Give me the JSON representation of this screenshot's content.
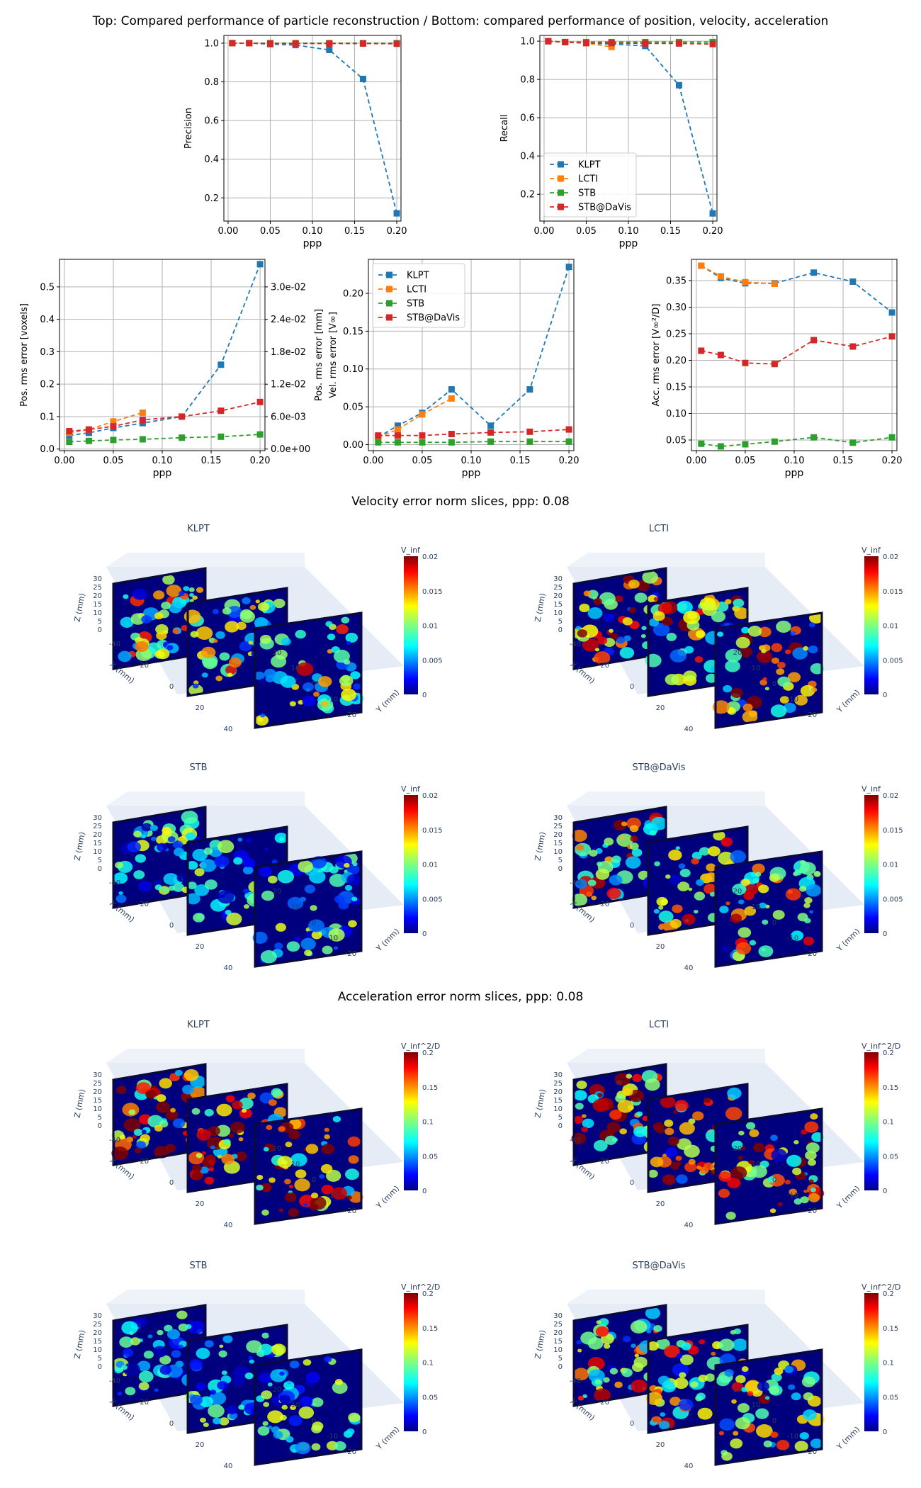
{
  "figure": {
    "title": "Top: Compared performance of particle reconstruction / Bottom: compared performance of position, velocity, acceleration",
    "velocity_section_title": "Velocity error norm slices, ppp: 0.08",
    "acceleration_section_title": "Acceleration error norm slices, ppp: 0.08"
  },
  "colors": {
    "KLPT": "#1f77b4",
    "LCTI": "#ff7f0e",
    "STB": "#2ca02c",
    "STB@DaVis": "#d62728",
    "grid": "#b0b0b0",
    "pane_bg": "#e5ecf6",
    "plotly_text": "#2a3f5f"
  },
  "chart_data": [
    {
      "id": "precision",
      "type": "line",
      "xlabel": "ppp",
      "ylabel": "Precision",
      "xlim": [
        -0.005,
        0.205
      ],
      "ylim": [
        0.08,
        1.04
      ],
      "xticks": [
        0.0,
        0.05,
        0.1,
        0.15,
        0.2
      ],
      "xticklabels": [
        "0.00",
        "0.05",
        "0.10",
        "0.15",
        "0.20"
      ],
      "yticks": [
        0.2,
        0.4,
        0.6,
        0.8,
        1.0
      ],
      "yticklabels": [
        "0.2",
        "0.4",
        "0.6",
        "0.8",
        "1.0"
      ],
      "grid": true,
      "x": [
        0.005,
        0.025,
        0.05,
        0.08,
        0.12,
        0.16,
        0.2
      ],
      "series": [
        {
          "name": "KLPT",
          "values": [
            1.0,
            1.0,
            0.995,
            0.99,
            0.965,
            0.815,
            0.12
          ]
        },
        {
          "name": "LCTI",
          "values": [
            1.0,
            1.0,
            1.0,
            1.0,
            null,
            null,
            null
          ]
        },
        {
          "name": "STB",
          "values": [
            1.0,
            1.0,
            1.0,
            1.0,
            1.0,
            1.0,
            1.0
          ]
        },
        {
          "name": "STB@DaVis",
          "values": [
            1.0,
            1.0,
            0.998,
            0.998,
            0.998,
            0.998,
            0.997
          ]
        }
      ]
    },
    {
      "id": "recall",
      "type": "line",
      "xlabel": "ppp",
      "ylabel": "Recall",
      "xlim": [
        -0.005,
        0.205
      ],
      "ylim": [
        0.06,
        1.03
      ],
      "xticks": [
        0.0,
        0.05,
        0.1,
        0.15,
        0.2
      ],
      "xticklabels": [
        "0.00",
        "0.05",
        "0.10",
        "0.15",
        "0.20"
      ],
      "yticks": [
        0.2,
        0.4,
        0.6,
        0.8,
        1.0
      ],
      "yticklabels": [
        "0.2",
        "0.4",
        "0.6",
        "0.8",
        "1.0"
      ],
      "grid": true,
      "legend": "lower-left",
      "x": [
        0.005,
        0.025,
        0.05,
        0.08,
        0.12,
        0.16,
        0.2
      ],
      "series": [
        {
          "name": "KLPT",
          "values": [
            1.0,
            0.995,
            0.99,
            0.985,
            0.975,
            0.77,
            0.1
          ]
        },
        {
          "name": "LCTI",
          "values": [
            1.0,
            0.995,
            0.99,
            0.97,
            null,
            null,
            null
          ]
        },
        {
          "name": "STB",
          "values": [
            1.0,
            0.995,
            0.995,
            0.995,
            0.995,
            0.995,
            0.995
          ]
        },
        {
          "name": "STB@DaVis",
          "values": [
            1.0,
            0.995,
            0.99,
            0.99,
            0.988,
            0.988,
            0.985
          ]
        }
      ]
    },
    {
      "id": "position",
      "type": "line",
      "xlabel": "ppp",
      "ylabel": "Pos. rms error [voxels]",
      "ylabel_right": "Pos. rms error [mm]",
      "xlim": [
        -0.005,
        0.205
      ],
      "ylim": [
        -0.005,
        0.585
      ],
      "xticks": [
        0.0,
        0.05,
        0.1,
        0.15,
        0.2
      ],
      "xticklabels": [
        "0.00",
        "0.05",
        "0.10",
        "0.15",
        "0.20"
      ],
      "yticks": [
        0.0,
        0.1,
        0.2,
        0.3,
        0.4,
        0.5
      ],
      "yticklabels": [
        "0.0",
        "0.1",
        "0.2",
        "0.3",
        "0.4",
        "0.5"
      ],
      "yticklabels_right": [
        "0.0e+00",
        "6.0e-03",
        "1.2e-02",
        "1.8e-02",
        "2.4e-02",
        "3.0e-02"
      ],
      "grid": true,
      "x": [
        0.005,
        0.025,
        0.05,
        0.08,
        0.12,
        0.16,
        0.2
      ],
      "series": [
        {
          "name": "KLPT",
          "values": [
            0.042,
            0.05,
            0.065,
            0.08,
            0.1,
            0.26,
            0.57
          ]
        },
        {
          "name": "LCTI",
          "values": [
            0.05,
            0.06,
            0.085,
            0.112,
            null,
            null,
            null
          ]
        },
        {
          "name": "STB",
          "values": [
            0.022,
            0.025,
            0.028,
            0.03,
            0.035,
            0.038,
            0.045
          ]
        },
        {
          "name": "STB@DaVis",
          "values": [
            0.055,
            0.06,
            0.07,
            0.09,
            0.1,
            0.118,
            0.145
          ]
        }
      ]
    },
    {
      "id": "velocity",
      "type": "line",
      "xlabel": "ppp",
      "ylabel": "Vel. rms error [V∞]",
      "xlim": [
        -0.005,
        0.205
      ],
      "ylim": [
        -0.008,
        0.245
      ],
      "xticks": [
        0.0,
        0.05,
        0.1,
        0.15,
        0.2
      ],
      "xticklabels": [
        "0.00",
        "0.05",
        "0.10",
        "0.15",
        "0.20"
      ],
      "yticks": [
        0.0,
        0.05,
        0.1,
        0.15,
        0.2
      ],
      "yticklabels": [
        "0.00",
        "0.05",
        "0.10",
        "0.15",
        "0.20"
      ],
      "grid": true,
      "legend": "top-left",
      "x": [
        0.005,
        0.025,
        0.05,
        0.08,
        0.12,
        0.16,
        0.2
      ],
      "series": [
        {
          "name": "KLPT",
          "values": [
            0.01,
            0.025,
            0.042,
            0.073,
            0.025,
            0.073,
            0.235
          ]
        },
        {
          "name": "LCTI",
          "values": [
            0.01,
            0.02,
            0.04,
            0.061,
            null,
            null,
            null
          ]
        },
        {
          "name": "STB",
          "values": [
            0.003,
            0.003,
            0.003,
            0.003,
            0.004,
            0.004,
            0.004
          ]
        },
        {
          "name": "STB@DaVis",
          "values": [
            0.012,
            0.012,
            0.012,
            0.014,
            0.016,
            0.017,
            0.02
          ]
        }
      ]
    },
    {
      "id": "acceleration",
      "type": "line",
      "xlabel": "ppp",
      "ylabel": "Acc. rms error [V∞²/D]",
      "xlim": [
        -0.005,
        0.205
      ],
      "ylim": [
        0.03,
        0.39
      ],
      "xticks": [
        0.0,
        0.05,
        0.1,
        0.15,
        0.2
      ],
      "xticklabels": [
        "0.00",
        "0.05",
        "0.10",
        "0.15",
        "0.20"
      ],
      "yticks": [
        0.05,
        0.1,
        0.15,
        0.2,
        0.25,
        0.3,
        0.35
      ],
      "yticklabels": [
        "0.05",
        "0.10",
        "0.15",
        "0.20",
        "0.25",
        "0.30",
        "0.35"
      ],
      "grid": true,
      "x": [
        0.005,
        0.025,
        0.05,
        0.08,
        0.12,
        0.16,
        0.2
      ],
      "series": [
        {
          "name": "KLPT",
          "values": [
            0.378,
            0.355,
            0.345,
            0.345,
            0.365,
            0.348,
            0.29
          ]
        },
        {
          "name": "LCTI",
          "values": [
            0.378,
            0.358,
            0.347,
            0.344,
            null,
            null,
            null
          ]
        },
        {
          "name": "STB",
          "values": [
            0.043,
            0.038,
            0.042,
            0.047,
            0.055,
            0.045,
            0.055
          ]
        },
        {
          "name": "STB@DaVis",
          "values": [
            0.218,
            0.21,
            0.195,
            0.193,
            0.238,
            0.226,
            0.245
          ]
        }
      ]
    }
  ],
  "slice_panels": {
    "velocity": {
      "colorbar_title": "V_inf",
      "colorbar_ticks": [
        "0",
        "0.005",
        "0.01",
        "0.015",
        "0.02"
      ],
      "panels": [
        {
          "title": "KLPT",
          "intensity": 0.35
        },
        {
          "title": "LCTI",
          "intensity": 0.6
        },
        {
          "title": "STB",
          "intensity": 0.05
        },
        {
          "title": "STB@DaVis",
          "intensity": 0.42
        }
      ]
    },
    "acceleration": {
      "colorbar_title": "V_inf^2/D",
      "colorbar_ticks": [
        "0",
        "0.05",
        "0.1",
        "0.15",
        "0.2"
      ],
      "panels": [
        {
          "title": "KLPT",
          "intensity": 0.8
        },
        {
          "title": "LCTI",
          "intensity": 0.82
        },
        {
          "title": "STB",
          "intensity": 0.05
        },
        {
          "title": "STB@DaVis",
          "intensity": 0.45
        }
      ]
    },
    "axes": {
      "x_label": "X (mm)",
      "y_label": "Y (mm)",
      "z_label": "Z (mm)",
      "x_ticks": [
        "-40",
        "-20",
        "0",
        "20",
        "40"
      ],
      "y_ticks": [
        "-20",
        "-10",
        "0",
        "10",
        "20"
      ],
      "z_ticks": [
        "0",
        "5",
        "10",
        "15",
        "20",
        "25",
        "30"
      ]
    }
  }
}
